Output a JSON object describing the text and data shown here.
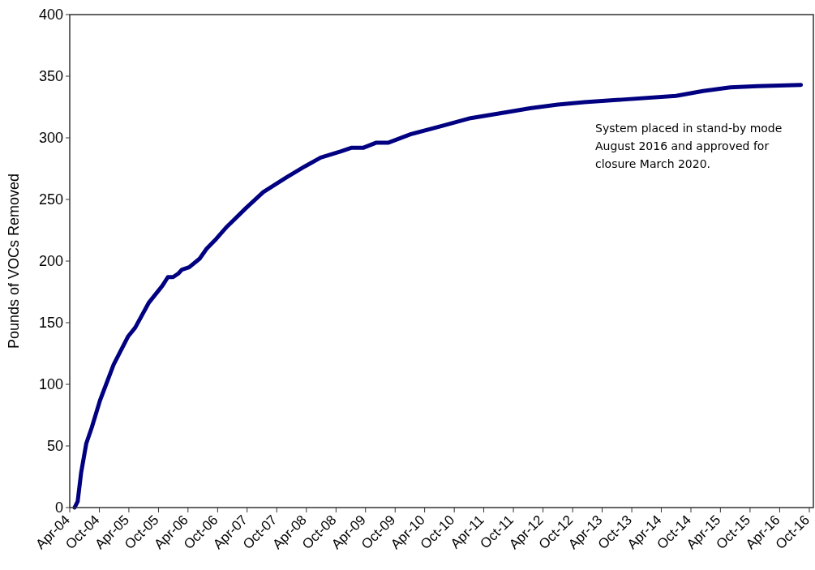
{
  "chart_data": {
    "type": "line",
    "ylabel": "Pounds of VOCs Removed",
    "annotations": [
      "System placed in stand-by mode August 2016 and approved for closure March 2020."
    ],
    "x": [
      "2004-05-01",
      "2004-05-20",
      "2004-06-10",
      "2004-07-12",
      "2004-08-15",
      "2004-10-05",
      "2004-12-28",
      "2005-03-28",
      "2005-05-10",
      "2005-08-01",
      "2005-10-25",
      "2005-11-28",
      "2005-12-30",
      "2006-02-01",
      "2006-02-22",
      "2006-04-08",
      "2006-06-12",
      "2006-07-25",
      "2006-09-22",
      "2006-11-28",
      "2007-03-25",
      "2007-07-10",
      "2007-12-01",
      "2008-03-25",
      "2008-06-28",
      "2008-11-01",
      "2009-01-06",
      "2009-03-20",
      "2009-06-04",
      "2009-08-18",
      "2010-01-07",
      "2010-07-25",
      "2011-01-10",
      "2011-09-01",
      "2012-01-12",
      "2012-07-01",
      "2012-12-12",
      "2013-08-01",
      "2014-07-01",
      "2014-12-15",
      "2015-06-01",
      "2015-11-15",
      "2016-08-10"
    ],
    "series": [
      {
        "color": "#000080",
        "values": [
          0,
          5,
          28,
          52,
          65,
          87,
          116,
          139,
          146,
          166,
          180,
          187,
          187,
          190,
          193,
          195,
          202,
          210,
          218,
          228,
          243,
          256,
          268,
          277,
          284,
          289,
          292,
          292,
          296,
          296,
          303,
          310,
          316,
          321,
          324,
          327,
          329,
          331,
          334,
          338,
          341,
          342,
          343
        ]
      }
    ],
    "xlim": [
      "2004-04-01",
      "2016-10-26"
    ],
    "xticks": [
      {
        "value": "2004-04",
        "label": "Apr-04"
      },
      {
        "value": "2004-10",
        "label": "Oct-04"
      },
      {
        "value": "2005-04",
        "label": "Apr-05"
      },
      {
        "value": "2005-10",
        "label": "Oct-05"
      },
      {
        "value": "2006-04",
        "label": "Apr-06"
      },
      {
        "value": "2006-10",
        "label": "Oct-06"
      },
      {
        "value": "2007-04",
        "label": "Apr-07"
      },
      {
        "value": "2007-10",
        "label": "Oct-07"
      },
      {
        "value": "2008-04",
        "label": "Apr-08"
      },
      {
        "value": "2008-10",
        "label": "Oct-08"
      },
      {
        "value": "2009-04",
        "label": "Apr-09"
      },
      {
        "value": "2009-10",
        "label": "Oct-09"
      },
      {
        "value": "2010-04",
        "label": "Apr-10"
      },
      {
        "value": "2010-10",
        "label": "Oct-10"
      },
      {
        "value": "2011-04",
        "label": "Apr-11"
      },
      {
        "value": "2011-10",
        "label": "Oct-11"
      },
      {
        "value": "2012-04",
        "label": "Apr-12"
      },
      {
        "value": "2012-10",
        "label": "Oct-12"
      },
      {
        "value": "2013-04",
        "label": "Apr-13"
      },
      {
        "value": "2013-10",
        "label": "Oct-13"
      },
      {
        "value": "2014-04",
        "label": "Apr-14"
      },
      {
        "value": "2014-10",
        "label": "Oct-14"
      },
      {
        "value": "2015-04",
        "label": "Apr-15"
      },
      {
        "value": "2015-10",
        "label": "Oct-15"
      },
      {
        "value": "2016-04",
        "label": "Apr-16"
      },
      {
        "value": "2016-10",
        "label": "Oct-16"
      }
    ],
    "ylim": [
      0,
      400
    ],
    "yticks": [
      0,
      50,
      100,
      150,
      200,
      250,
      300,
      350,
      400
    ],
    "grid": false,
    "marker": "none",
    "line_style": "solid"
  }
}
